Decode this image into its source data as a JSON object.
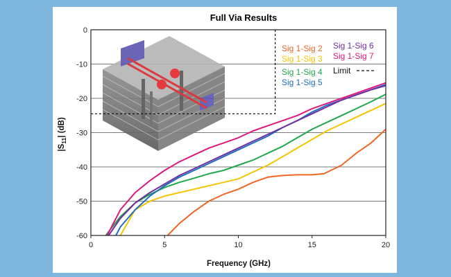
{
  "chart_data": {
    "type": "line",
    "title": "Full Via Results",
    "xlabel": "Frequency (GHz)",
    "ylabel_prefix": "|S",
    "ylabel_sub": "11",
    "ylabel_suffix": "| (dB)",
    "xlim": [
      0,
      20
    ],
    "ylim": [
      -60,
      0
    ],
    "xticks": [
      0,
      5,
      10,
      15,
      20
    ],
    "yticks": [
      0,
      -10,
      -20,
      -30,
      -40,
      -50,
      -60
    ],
    "grid": true,
    "legend_position": "top-right",
    "series": [
      {
        "name": "Sig 1-Sig 2",
        "color": "#f26522",
        "x": [
          5.2,
          6,
          7,
          8,
          9,
          10,
          11,
          12,
          13,
          14,
          15,
          15.8,
          17,
          18,
          19,
          20
        ],
        "y": [
          -60,
          -56.5,
          -53,
          -50,
          -48,
          -46.5,
          -44.5,
          -43,
          -42.5,
          -42.3,
          -42.3,
          -42,
          -39.5,
          -36,
          -33,
          -29
        ]
      },
      {
        "name": "Sig 1-Sig 3",
        "color": "#f5c400",
        "x": [
          2,
          3,
          4,
          5,
          6,
          7,
          8,
          9,
          10,
          11,
          12,
          13,
          14,
          15,
          16,
          17,
          18,
          19,
          20
        ],
        "y": [
          -60,
          -52.5,
          -50,
          -48.5,
          -47.5,
          -46.5,
          -45.5,
          -44.5,
          -43.5,
          -41.5,
          -39.5,
          -37,
          -34.5,
          -32,
          -29.5,
          -27.5,
          -25.5,
          -23.5,
          -21.5
        ]
      },
      {
        "name": "Sig 1-Sig 4",
        "color": "#1fa84a",
        "x": [
          1,
          2,
          3,
          4,
          5,
          6,
          7,
          8,
          9,
          10,
          11,
          12,
          13,
          14,
          15,
          16,
          17,
          18,
          19,
          20
        ],
        "y": [
          -60,
          -54.5,
          -50.5,
          -48,
          -46,
          -44.5,
          -43.3,
          -42,
          -41,
          -39.5,
          -38,
          -36,
          -34,
          -31.5,
          -29,
          -27,
          -25,
          -23,
          -21,
          -18.8
        ]
      },
      {
        "name": "Sig 1-Sig 5",
        "color": "#1f6fc1",
        "x": [
          1.7,
          2,
          3,
          4,
          5,
          6,
          7,
          8,
          9,
          10,
          11,
          12,
          13,
          14,
          15,
          16,
          17,
          18,
          19,
          20
        ],
        "y": [
          -60,
          -57.5,
          -52.5,
          -48.5,
          -45.5,
          -43,
          -41,
          -39,
          -37,
          -35,
          -33,
          -31,
          -28.5,
          -26.5,
          -24,
          -22,
          -20.5,
          -19,
          -17.5,
          -16
        ]
      },
      {
        "name": "Sig 1-Sig 6",
        "color": "#7030a0",
        "x": [
          1.2,
          2,
          3,
          4,
          5,
          6,
          7,
          8,
          9,
          10,
          11,
          12,
          13,
          14,
          15,
          16,
          17,
          18,
          19,
          20
        ],
        "y": [
          -60,
          -55,
          -50.5,
          -47.5,
          -45,
          -42.5,
          -40.5,
          -38.5,
          -36.5,
          -34.5,
          -32.5,
          -30.5,
          -28.5,
          -26.5,
          -24.5,
          -22.5,
          -20.5,
          -19,
          -17.5,
          -16.3
        ]
      },
      {
        "name": "Sig 1-Sig 7",
        "color": "#e0177a",
        "x": [
          1.1,
          2,
          3,
          4,
          5,
          6,
          7,
          8,
          9,
          10,
          11,
          12,
          13,
          14,
          15,
          16,
          17,
          18,
          19,
          20
        ],
        "y": [
          -60,
          -52.5,
          -47.5,
          -44,
          -41,
          -38.5,
          -36.5,
          -34.5,
          -33,
          -31.5,
          -29.5,
          -28,
          -26.5,
          -25,
          -23,
          -21.5,
          -20,
          -18.5,
          -17,
          -15.5
        ]
      },
      {
        "name": "Limit",
        "color": "#000000",
        "dashed": true,
        "x": [
          0,
          12.5,
          12.5
        ],
        "y": [
          -24.5,
          -24.5,
          0
        ]
      }
    ]
  }
}
